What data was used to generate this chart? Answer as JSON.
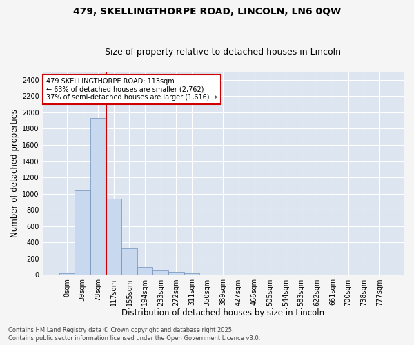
{
  "title1": "479, SKELLINGTHORPE ROAD, LINCOLN, LN6 0QW",
  "title2": "Size of property relative to detached houses in Lincoln",
  "xlabel": "Distribution of detached houses by size in Lincoln",
  "ylabel": "Number of detached properties",
  "bar_color": "#c8d8ee",
  "bar_edge_color": "#7090b8",
  "background_color": "#dde6f0",
  "fig_background": "#f5f5f5",
  "grid_color": "#ffffff",
  "categories": [
    "0sqm",
    "39sqm",
    "78sqm",
    "117sqm",
    "155sqm",
    "194sqm",
    "233sqm",
    "272sqm",
    "311sqm",
    "350sqm",
    "389sqm",
    "427sqm",
    "466sqm",
    "505sqm",
    "544sqm",
    "583sqm",
    "622sqm",
    "661sqm",
    "700sqm",
    "738sqm",
    "777sqm"
  ],
  "values": [
    20,
    1040,
    1930,
    940,
    325,
    100,
    55,
    35,
    20,
    0,
    0,
    0,
    0,
    0,
    0,
    0,
    0,
    0,
    0,
    0,
    0
  ],
  "ylim": [
    0,
    2500
  ],
  "yticks": [
    0,
    200,
    400,
    600,
    800,
    1000,
    1200,
    1400,
    1600,
    1800,
    2000,
    2200,
    2400
  ],
  "vline_pos": 2.5,
  "annotation_text": "479 SKELLINGTHORPE ROAD: 113sqm\n← 63% of detached houses are smaller (2,762)\n37% of semi-detached houses are larger (1,616) →",
  "annotation_box_color": "#ffffff",
  "annotation_border_color": "#cc0000",
  "footer1": "Contains HM Land Registry data © Crown copyright and database right 2025.",
  "footer2": "Contains public sector information licensed under the Open Government Licence v3.0.",
  "title_fontsize": 10,
  "subtitle_fontsize": 9,
  "axis_label_fontsize": 8.5,
  "tick_fontsize": 7,
  "annotation_fontsize": 7,
  "footer_fontsize": 6
}
